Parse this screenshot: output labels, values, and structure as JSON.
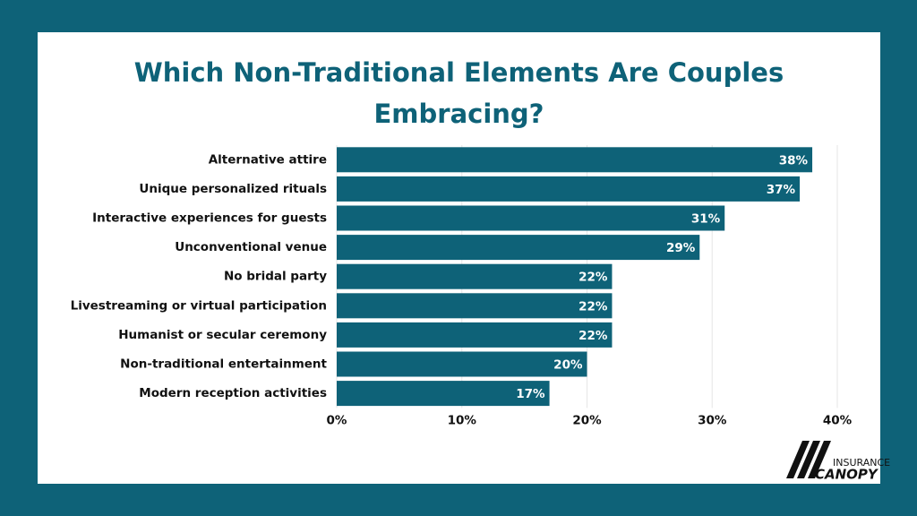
{
  "chart_data": {
    "type": "bar",
    "orientation": "horizontal",
    "title": "Which Non-Traditional Elements Are Couples Embracing?",
    "categories": [
      "Alternative attire",
      "Unique personalized rituals",
      "Interactive experiences for guests",
      "Unconventional venue",
      "No bridal party",
      "Livestreaming or virtual participation",
      "Humanist or secular ceremony",
      "Non-traditional entertainment",
      "Modern reception activities"
    ],
    "values": [
      38,
      37,
      31,
      29,
      22,
      22,
      22,
      20,
      17
    ],
    "value_labels": [
      "38%",
      "37%",
      "31%",
      "29%",
      "22%",
      "22%",
      "22%",
      "20%",
      "17%"
    ],
    "color": "#0e6278",
    "xlim": [
      0,
      40
    ],
    "xticks": [
      {
        "value": 0,
        "label": "0%"
      },
      {
        "value": 10,
        "label": "10%"
      },
      {
        "value": 20,
        "label": "20%"
      },
      {
        "value": 30,
        "label": "30%"
      },
      {
        "value": 40,
        "label": "40%"
      }
    ],
    "grid": true
  },
  "logo": {
    "line1": "INSURANCE",
    "line2": "CANOPY"
  }
}
